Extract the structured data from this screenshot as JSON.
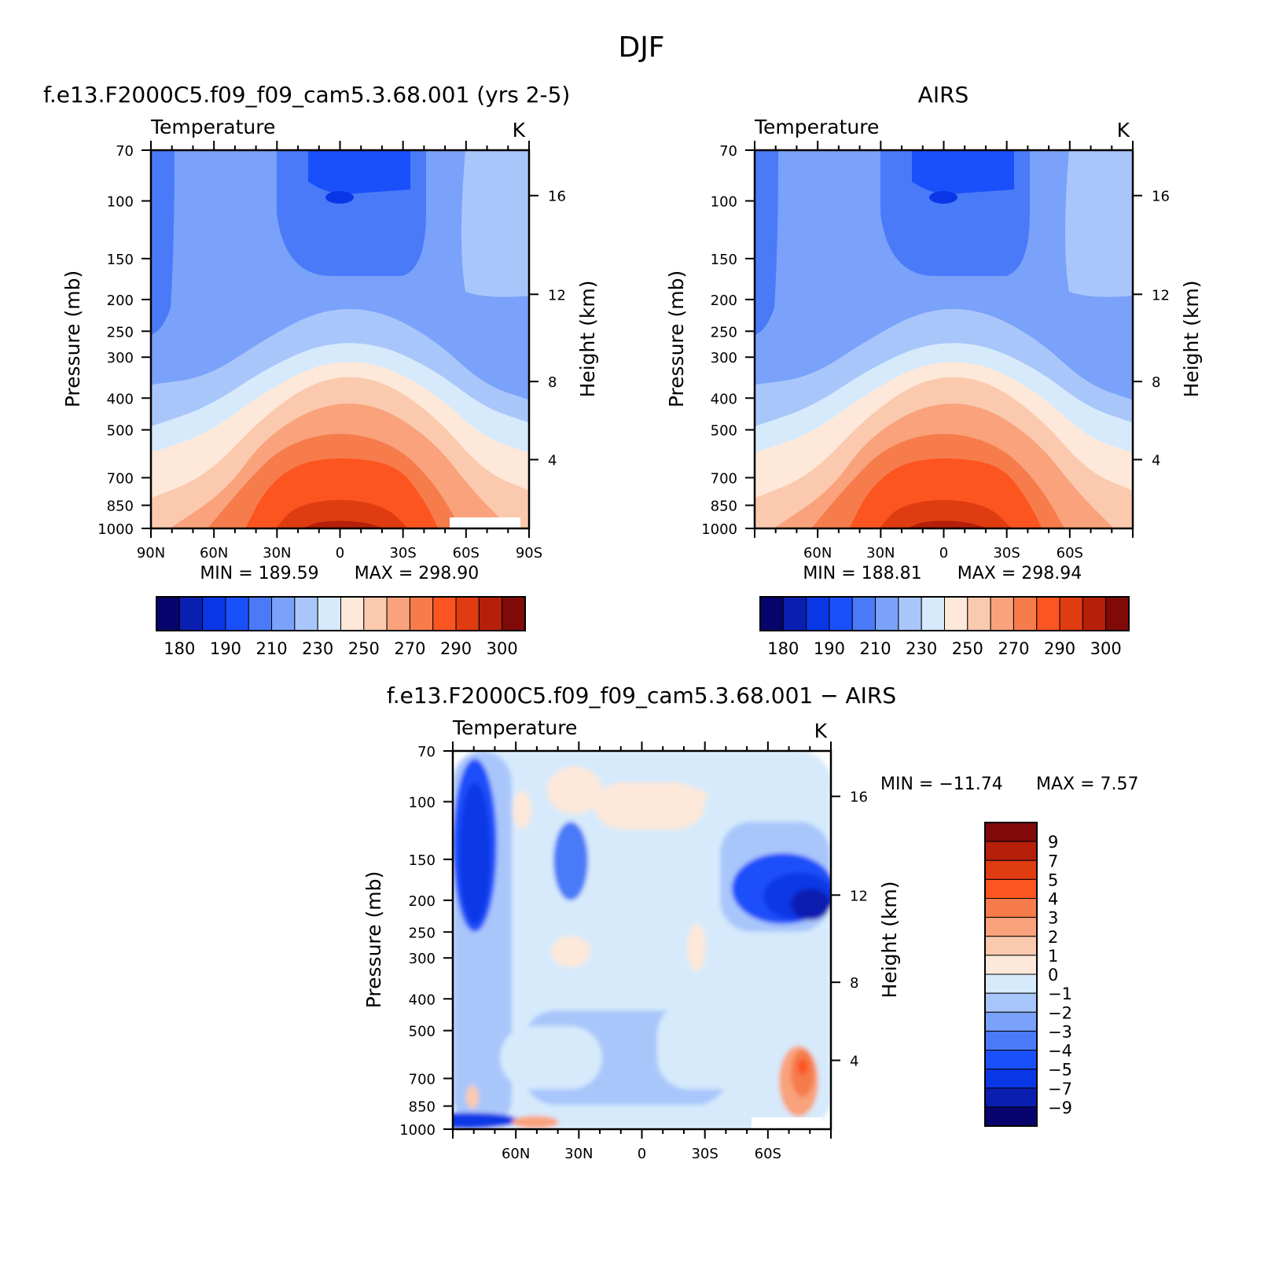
{
  "figure_title": "DJF",
  "colors": {
    "abs_levels": [
      "#08046e",
      "#0a1fb0",
      "#0a37e6",
      "#1a50fa",
      "#4a7af8",
      "#7aa2fa",
      "#a9c6fb",
      "#d6eafb",
      "#fde8d9",
      "#fbc9ae",
      "#f9a27b",
      "#f67c4c",
      "#fd5520",
      "#df3c12",
      "#b6200a",
      "#800a08"
    ],
    "diff_levels": [
      "#08046e",
      "#0a1fb0",
      "#0a37e6",
      "#1a50fa",
      "#4a7af8",
      "#7aa2fa",
      "#a9c6fb",
      "#d6eafb",
      "#fde8d9",
      "#fbc9ae",
      "#f9a27b",
      "#f67c4c",
      "#fd5520",
      "#df3c12",
      "#b6200a",
      "#800a08"
    ]
  },
  "chart_data": [
    {
      "type": "heatmap",
      "title": "f.e13.F2000C5.f09_f09_cam5.3.68.001 (yrs 2-5)",
      "variable": "Temperature",
      "units": "K",
      "ylabel": "Pressure (mb)",
      "ylabel2": "Height (km)",
      "x_ticks": [
        "90N",
        "60N",
        "30N",
        "0",
        "30S",
        "60S",
        "90S"
      ],
      "x_values": [
        90,
        60,
        30,
        0,
        -30,
        -60,
        -90
      ],
      "xlim": [
        90,
        -90
      ],
      "y_ticks": [
        70,
        100,
        150,
        200,
        250,
        300,
        400,
        500,
        700,
        850,
        1000
      ],
      "ylim": [
        70,
        1000
      ],
      "y_scale": "log",
      "height_ticks": [
        4,
        8,
        12,
        16
      ],
      "min_label": "MIN = 189.59",
      "max_label": "MAX = 298.90",
      "min": 189.59,
      "max": 298.9,
      "colorbar_labels": [
        "180",
        "190",
        "210",
        "230",
        "250",
        "270",
        "290",
        "300"
      ],
      "contour_levels": [
        180,
        185,
        190,
        200,
        210,
        220,
        230,
        240,
        250,
        260,
        270,
        280,
        290,
        295,
        300
      ],
      "colorbar_orientation": "horizontal"
    },
    {
      "type": "heatmap",
      "title": "AIRS",
      "variable": "Temperature",
      "units": "K",
      "ylabel": "Pressure (mb)",
      "ylabel2": "Height (km)",
      "x_ticks": [
        "60N",
        "30N",
        "0",
        "30S",
        "60S"
      ],
      "x_values": [
        60,
        30,
        0,
        -30,
        -60
      ],
      "xlim": [
        90,
        -90
      ],
      "y_ticks": [
        70,
        100,
        150,
        200,
        250,
        300,
        400,
        500,
        700,
        850,
        1000
      ],
      "ylim": [
        70,
        1000
      ],
      "y_scale": "log",
      "height_ticks": [
        4,
        8,
        12,
        16
      ],
      "min_label": "MIN = 188.81",
      "max_label": "MAX = 298.94",
      "min": 188.81,
      "max": 298.94,
      "colorbar_labels": [
        "180",
        "190",
        "210",
        "230",
        "250",
        "270",
        "290",
        "300"
      ],
      "contour_levels": [
        180,
        185,
        190,
        200,
        210,
        220,
        230,
        240,
        250,
        260,
        270,
        280,
        290,
        295,
        300
      ],
      "colorbar_orientation": "horizontal"
    },
    {
      "type": "heatmap",
      "title": "f.e13.F2000C5.f09_f09_cam5.3.68.001 − AIRS",
      "variable": "Temperature",
      "units": "K",
      "ylabel": "Pressure (mb)",
      "ylabel2": "Height (km)",
      "x_ticks": [
        "60N",
        "30N",
        "0",
        "30S",
        "60S"
      ],
      "x_values": [
        60,
        30,
        0,
        -30,
        -60
      ],
      "xlim": [
        90,
        -90
      ],
      "y_ticks": [
        70,
        100,
        150,
        200,
        250,
        300,
        400,
        500,
        700,
        850,
        1000
      ],
      "ylim": [
        70,
        1000
      ],
      "y_scale": "log",
      "height_ticks": [
        4,
        8,
        12,
        16
      ],
      "min_label": "MIN = −11.74",
      "max_label": "MAX =    7.57",
      "min": -11.74,
      "max": 7.57,
      "colorbar_labels": [
        "9",
        "7",
        "5",
        "4",
        "3",
        "2",
        "1",
        "0",
        "−1",
        "−2",
        "−3",
        "−4",
        "−5",
        "−7",
        "−9"
      ],
      "contour_levels": [
        -9,
        -7,
        -5,
        -4,
        -3,
        -2,
        -1,
        0,
        1,
        2,
        3,
        4,
        5,
        7,
        9
      ],
      "colorbar_orientation": "vertical"
    }
  ]
}
